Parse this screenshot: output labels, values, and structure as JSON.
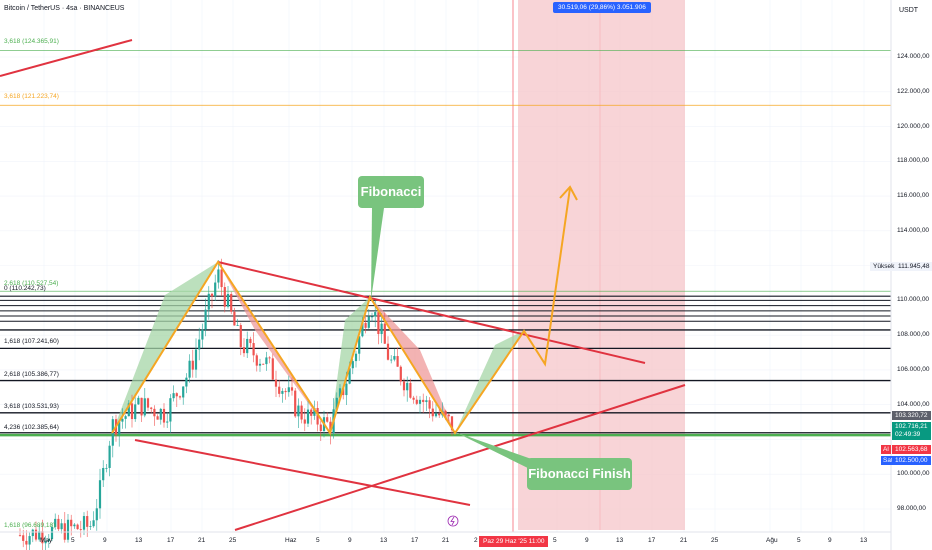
{
  "header": {
    "symbol_title": "Bitcoin / TetherUS · 4sa · BINANCEUS",
    "currency": "USDT",
    "measure_box": "30.519,06 (29,86%) 3.051.906"
  },
  "callouts": {
    "fibonacci": "Fibonacci",
    "fibonacci_finish": "Fibonacci Finish"
  },
  "fib_labels": [
    {
      "text": "3,618 (124.365,91)",
      "color": "#4caf50"
    },
    {
      "text": "3,618 (121.223,74)",
      "color": "#f5a623"
    },
    {
      "text": "2,618 (110.527,54)",
      "color": "#4caf50"
    },
    {
      "text": "0 (110.242,73)",
      "color": "#131722"
    },
    {
      "text": "1,618 (107.241,60)",
      "color": "#131722"
    },
    {
      "text": "2,618 (105.386,77)",
      "color": "#131722"
    },
    {
      "text": "3,618 (103.531,93)",
      "color": "#131722"
    },
    {
      "text": "4,236 (102.385,64)",
      "color": "#131722"
    },
    {
      "text": "1,618 (96.689,18)",
      "color": "#4caf50"
    }
  ],
  "price_axis": [
    "124.000,00",
    "122.000,00",
    "120.000,00",
    "118.000,00",
    "116.000,00",
    "114.000,00",
    "110.000,00",
    "108.000,00",
    "106.000,00",
    "104.000,00",
    "100.000,00",
    "98.000,00"
  ],
  "price_pills": {
    "high_label": "Yüksek",
    "high_value": "111.945,48",
    "last_price": "103.320,72",
    "current_price": "102.716,21",
    "countdown": "02:49:39",
    "bid_tag": "Al",
    "bid_price": "102.563,68",
    "ask_tag": "Sat",
    "ask_price": "102.500,00"
  },
  "time_axis": [
    "May",
    "5",
    "9",
    "13",
    "17",
    "21",
    "25",
    "Haz",
    "5",
    "9",
    "13",
    "17",
    "21",
    "2",
    "5",
    "9",
    "13",
    "17",
    "21",
    "25",
    "Ağu",
    "5",
    "9",
    "13"
  ],
  "selected_date": "Paz 29 Haz '25   11:00",
  "colors": {
    "bull": "#26a69a",
    "bear": "#ef5350",
    "orange_path": "#f5a623",
    "red_trend": "#e03340",
    "zone": "#f6c6c9",
    "green_level": "#4caf50"
  },
  "chart_data": {
    "type": "candlestick",
    "title": "Bitcoin / TetherUS · 4sa · BINANCEUS",
    "ylabel": "USDT",
    "ylim": [
      97000,
      126000
    ],
    "x_ticks": [
      "May",
      "5",
      "9",
      "13",
      "17",
      "21",
      "25",
      "Haz",
      "5",
      "9",
      "13",
      "17",
      "21",
      "2",
      "5",
      "9",
      "13",
      "17",
      "21",
      "25",
      "Ağu",
      "5",
      "9",
      "13"
    ],
    "fib_levels": [
      124365.91,
      121223.74,
      110527.54,
      110242.73,
      107241.6,
      105386.77,
      103531.93,
      102385.64,
      96689.18
    ],
    "projected_path": [
      {
        "t": "2025-05-07",
        "price": 102400
      },
      {
        "t": "2025-05-22",
        "price": 111900
      },
      {
        "t": "2025-06-05",
        "price": 102400
      },
      {
        "t": "2025-06-11",
        "price": 110300
      },
      {
        "t": "2025-06-22",
        "price": 102400
      },
      {
        "t": "2025-06-28",
        "price": 107900
      },
      {
        "t": "2025-07-02",
        "price": 106300
      },
      {
        "t": "2025-07-05",
        "price": 116500
      }
    ],
    "last_price": 102716.21,
    "high": 111945.48
  }
}
